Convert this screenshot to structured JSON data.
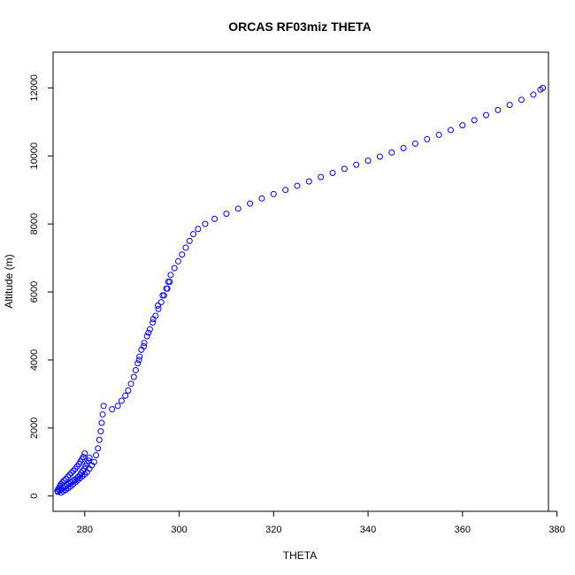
{
  "chart_data": {
    "type": "scatter",
    "title": "ORCAS RF03miz THETA",
    "xlabel": "THETA",
    "ylabel": "Altitude (m)",
    "xlim": [
      273.3,
      378.2
    ],
    "ylim": [
      -450,
      13050
    ],
    "xticks": [
      280,
      300,
      320,
      340,
      360,
      380
    ],
    "yticks": [
      0,
      2000,
      4000,
      6000,
      8000,
      10000,
      12000
    ],
    "grid": false,
    "marker": "open-circle",
    "color": "#0000ff",
    "series": [
      {
        "x": [
          274.2,
          274.4,
          274.6,
          274.8,
          275.0,
          275.3,
          275.6,
          276.0,
          276.4,
          276.8,
          277.2,
          277.6,
          278.0,
          278.4,
          278.8,
          279.1,
          279.4,
          279.7,
          280.0,
          274.3,
          274.7,
          275.1,
          275.5,
          275.9,
          276.3,
          276.7,
          277.1,
          277.5,
          277.9,
          278.3,
          278.6,
          279.0,
          279.3,
          279.6,
          279.9,
          280.2,
          280.5,
          280.8,
          281.0,
          275.0,
          275.5,
          276.0,
          276.5,
          277.0,
          277.5,
          278.0,
          278.5,
          279.0,
          279.5,
          280.0,
          280.5,
          281.0,
          281.5,
          282.0,
          282.4,
          282.8,
          283.1,
          283.4,
          283.6,
          283.8,
          284.0,
          285.8,
          287.0,
          287.8,
          288.6,
          289.2,
          289.8,
          290.4,
          290.8,
          291.2,
          291.6,
          292.0,
          292.6,
          293.2,
          293.8,
          294.4,
          295.0,
          295.6,
          296.2,
          296.8,
          297.3,
          297.7,
          298.2,
          299.0,
          299.8,
          300.6,
          301.4,
          302.2,
          303.0,
          304.0,
          305.5,
          307.5,
          310.0,
          312.5,
          315.0,
          317.5,
          320.0,
          322.5,
          325.0,
          327.5,
          330.0,
          332.5,
          335.0,
          337.5,
          340.0,
          342.5,
          345.0,
          347.5,
          350.0,
          352.5,
          355.0,
          357.5,
          360.0,
          362.5,
          365.0,
          367.5,
          370.0,
          372.5,
          375.0,
          376.5,
          377.0,
          291.5,
          292.5,
          293.5,
          294.5,
          295.5,
          296.5,
          297.5,
          298.0
        ],
        "y": [
          150,
          200,
          250,
          300,
          350,
          400,
          450,
          500,
          560,
          620,
          680,
          740,
          800,
          870,
          940,
          1010,
          1080,
          1150,
          1250,
          120,
          160,
          200,
          240,
          280,
          320,
          360,
          400,
          440,
          480,
          520,
          560,
          620,
          680,
          740,
          800,
          880,
          960,
          1040,
          1120,
          100,
          140,
          180,
          230,
          280,
          340,
          400,
          460,
          520,
          580,
          640,
          700,
          800,
          900,
          1000,
          1200,
          1400,
          1650,
          1900,
          2150,
          2400,
          2650,
          2550,
          2650,
          2800,
          2950,
          3100,
          3300,
          3500,
          3700,
          3900,
          4100,
          4300,
          4500,
          4700,
          4900,
          5100,
          5300,
          5500,
          5700,
          5900,
          6100,
          6300,
          6500,
          6700,
          6900,
          7100,
          7300,
          7500,
          7700,
          7850,
          8000,
          8150,
          8300,
          8450,
          8600,
          8750,
          8880,
          9000,
          9120,
          9250,
          9380,
          9500,
          9620,
          9740,
          9860,
          9980,
          10100,
          10230,
          10360,
          10490,
          10620,
          10760,
          10900,
          11050,
          11200,
          11350,
          11500,
          11650,
          11800,
          11950,
          12000,
          4000,
          4400,
          4800,
          5200,
          5600,
          5900,
          6100,
          6300
        ]
      }
    ]
  }
}
